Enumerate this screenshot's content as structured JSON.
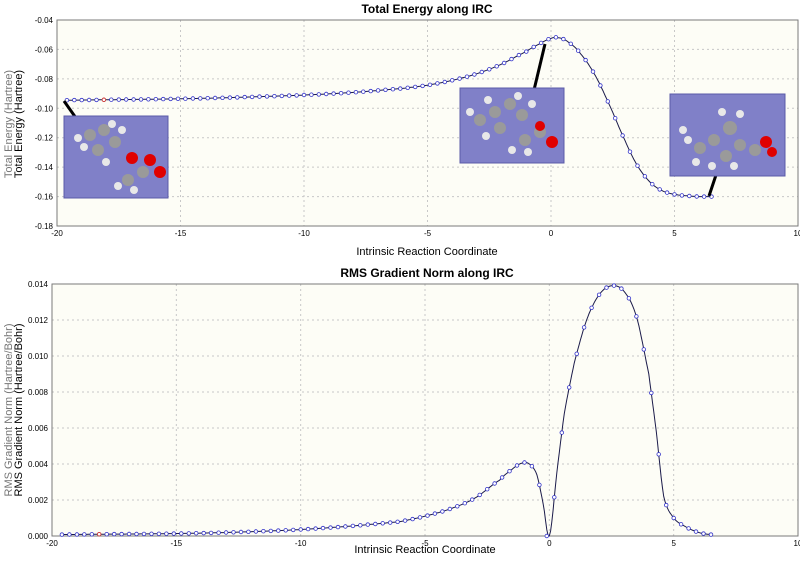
{
  "chart_data": [
    {
      "type": "line",
      "title": "Total Energy along IRC",
      "xlabel": "Intrinsic Reaction Coordinate",
      "ylabel": "Total Energy (Hartree)",
      "ylabel_ghost": "Total Energy (Hartree)",
      "xlim": [
        -20,
        10
      ],
      "ylim": [
        -0.18,
        -0.04
      ],
      "xticks": [
        -20,
        -15,
        -10,
        -5,
        0,
        5,
        10
      ],
      "yticks": [
        -0.18,
        -0.16,
        -0.14,
        -0.12,
        -0.1,
        -0.08,
        -0.06,
        -0.04
      ],
      "ytick_labels": [
        "-0.18",
        "-0.16",
        "-0.14",
        "-0.12",
        "-0.10",
        "-0.08",
        "-0.06",
        "-0.04"
      ],
      "grid": true,
      "marker_step": 0.3,
      "selected_x": -18.2,
      "curve_points": [
        [
          -19.6,
          -0.0945
        ],
        [
          -18,
          -0.0942
        ],
        [
          -16,
          -0.0938
        ],
        [
          -14,
          -0.0932
        ],
        [
          -12,
          -0.0922
        ],
        [
          -10,
          -0.091
        ],
        [
          -8,
          -0.0892
        ],
        [
          -6,
          -0.0865
        ],
        [
          -5,
          -0.0843
        ],
        [
          -4,
          -0.081
        ],
        [
          -3,
          -0.0765
        ],
        [
          -2,
          -0.07
        ],
        [
          -1,
          -0.0615
        ],
        [
          -0.5,
          -0.0565
        ],
        [
          0,
          -0.0525
        ],
        [
          0.3,
          -0.052
        ],
        [
          0.7,
          -0.055
        ],
        [
          1.2,
          -0.063
        ],
        [
          1.8,
          -0.078
        ],
        [
          2.4,
          -0.099
        ],
        [
          3,
          -0.122
        ],
        [
          3.5,
          -0.139
        ],
        [
          4,
          -0.15
        ],
        [
          4.5,
          -0.156
        ],
        [
          5,
          -0.1585
        ],
        [
          5.5,
          -0.1595
        ],
        [
          6,
          -0.16
        ],
        [
          6.5,
          -0.16
        ]
      ],
      "structures": [
        {
          "name": "reactant",
          "anchor": [
            -19.5,
            -0.0945
          ]
        },
        {
          "name": "transition-state",
          "anchor": [
            -0.3,
            -0.0545
          ]
        },
        {
          "name": "product",
          "anchor": [
            6.5,
            -0.16
          ]
        }
      ]
    },
    {
      "type": "line",
      "title": "RMS Gradient Norm along IRC",
      "xlabel": "Intrinsic Reaction Coordinate",
      "ylabel": "RMS Gradient Norm (Hartree/Bohr)",
      "ylabel_ghost": "RMS Gradient Norm (Hartree/Bohr)",
      "xlim": [
        -20,
        10
      ],
      "ylim": [
        0,
        0.014
      ],
      "xticks": [
        -20,
        -15,
        -10,
        -5,
        0,
        5,
        10
      ],
      "yticks": [
        0,
        0.002,
        0.004,
        0.006,
        0.008,
        0.01,
        0.012,
        0.014
      ],
      "ytick_labels": [
        "0.000",
        "0.002",
        "0.004",
        "0.006",
        "0.008",
        "0.010",
        "0.012",
        "0.014"
      ],
      "grid": true,
      "marker_step": 0.3,
      "selected_x": -18.2,
      "curve_points": [
        [
          -19.6,
          8e-05
        ],
        [
          -18,
          0.0001
        ],
        [
          -16,
          0.00012
        ],
        [
          -14,
          0.00016
        ],
        [
          -12,
          0.00024
        ],
        [
          -10,
          0.00036
        ],
        [
          -8,
          0.00055
        ],
        [
          -6,
          0.0008
        ],
        [
          -5,
          0.0011
        ],
        [
          -4,
          0.0015
        ],
        [
          -3,
          0.0021
        ],
        [
          -2,
          0.0031
        ],
        [
          -1.5,
          0.0037
        ],
        [
          -1.1,
          0.00405
        ],
        [
          -0.8,
          0.004
        ],
        [
          -0.5,
          0.0034
        ],
        [
          -0.25,
          0.0018
        ],
        [
          0,
          0.0
        ],
        [
          0.3,
          0.0035
        ],
        [
          0.6,
          0.0068
        ],
        [
          1,
          0.0096
        ],
        [
          1.5,
          0.012
        ],
        [
          2,
          0.0134
        ],
        [
          2.5,
          0.0139
        ],
        [
          3,
          0.0136
        ],
        [
          3.5,
          0.0122
        ],
        [
          4,
          0.009
        ],
        [
          4.3,
          0.0058
        ],
        [
          4.6,
          0.0022
        ],
        [
          5,
          0.001
        ],
        [
          5.5,
          0.0005
        ],
        [
          6,
          0.0002
        ],
        [
          6.5,
          8e-05
        ]
      ]
    }
  ]
}
